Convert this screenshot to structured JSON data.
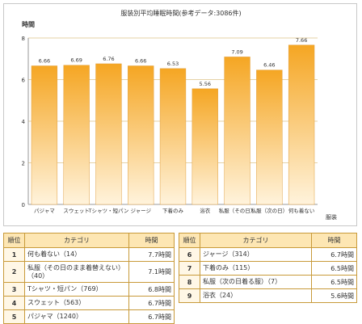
{
  "chart_data": {
    "type": "bar",
    "title": "服装別平均睡眠時間(参考データ:3086件)",
    "ylabel": "時間",
    "xlabel": "服装",
    "ylim": [
      0,
      8
    ],
    "yticks": [
      "0",
      "2",
      "4",
      "6",
      "8"
    ],
    "categories": [
      "パジャマ",
      "スウェット",
      "Tシャツ・短パン",
      "ジャージ",
      "下着のみ",
      "浴衣",
      "私服（その日）",
      "私服（次の日）",
      "何も着ない"
    ],
    "values": [
      6.66,
      6.69,
      6.76,
      6.66,
      6.53,
      5.56,
      7.09,
      6.46,
      7.66
    ],
    "value_labels": [
      "6.66",
      "6.69",
      "6.76",
      "6.66",
      "6.53",
      "5.56",
      "7.09",
      "6.46",
      "7.66"
    ],
    "grid": true,
    "colors": {
      "bar_top": "#f5a623",
      "bar_bottom": "#fff3dc",
      "grid": "#e6d2a6"
    }
  },
  "table": {
    "headers": {
      "rank": "順位",
      "category": "カテゴリ",
      "time": "時間"
    },
    "left": [
      {
        "rank": "1",
        "category": "何も着ない（14）",
        "time": "7.7時間"
      },
      {
        "rank": "2",
        "category": "私服（その日のまま着替えない）（40）",
        "time": "7.1時間"
      },
      {
        "rank": "3",
        "category": "Tシャツ・短パン（769）",
        "time": "6.8時間"
      },
      {
        "rank": "4",
        "category": "スウェット（563）",
        "time": "6.7時間"
      },
      {
        "rank": "5",
        "category": "パジャマ（1240）",
        "time": "6.7時間"
      }
    ],
    "right": [
      {
        "rank": "6",
        "category": "ジャージ（314）",
        "time": "6.7時間"
      },
      {
        "rank": "7",
        "category": "下着のみ（115）",
        "time": "6.5時間"
      },
      {
        "rank": "8",
        "category": "私服（次の日着る服）（7）",
        "time": "6.5時間"
      },
      {
        "rank": "9",
        "category": "浴衣（24）",
        "time": "5.6時間"
      }
    ]
  }
}
